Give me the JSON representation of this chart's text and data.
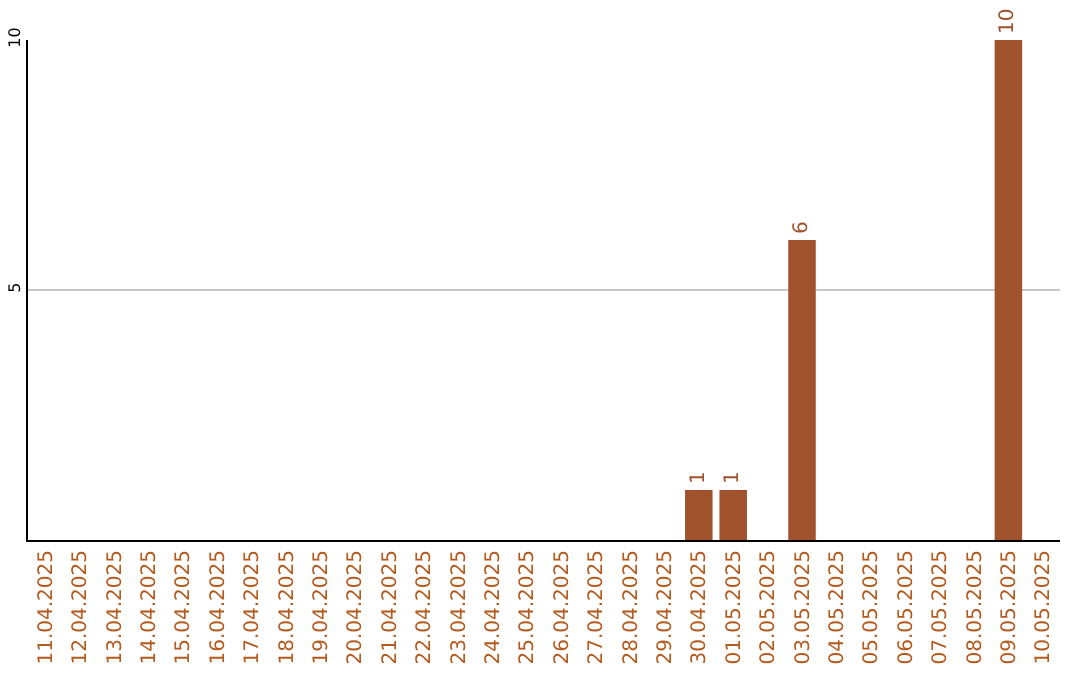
{
  "chart_data": {
    "type": "bar",
    "categories": [
      "11.04.2025",
      "12.04.2025",
      "13.04.2025",
      "14.04.2025",
      "15.04.2025",
      "16.04.2025",
      "17.04.2025",
      "18.04.2025",
      "19.04.2025",
      "20.04.2025",
      "21.04.2025",
      "22.04.2025",
      "23.04.2025",
      "24.04.2025",
      "25.04.2025",
      "26.04.2025",
      "27.04.2025",
      "28.04.2025",
      "29.04.2025",
      "30.04.2025",
      "01.05.2025",
      "02.05.2025",
      "03.05.2025",
      "04.05.2025",
      "05.05.2025",
      "06.05.2025",
      "07.05.2025",
      "08.05.2025",
      "09.05.2025",
      "10.05.2025"
    ],
    "values": [
      0,
      0,
      0,
      0,
      0,
      0,
      0,
      0,
      0,
      0,
      0,
      0,
      0,
      0,
      0,
      0,
      0,
      0,
      0,
      1,
      1,
      0,
      6,
      0,
      0,
      0,
      0,
      0,
      10,
      0
    ],
    "value_labels": [
      null,
      null,
      null,
      null,
      null,
      null,
      null,
      null,
      null,
      null,
      null,
      null,
      null,
      null,
      null,
      null,
      null,
      null,
      null,
      "1",
      "1",
      null,
      "6",
      null,
      null,
      null,
      null,
      null,
      "10",
      null
    ],
    "color": "#a0522d",
    "ylim": [
      0,
      10
    ],
    "yticks": [
      5,
      10
    ],
    "grid": "y",
    "legend": false
  }
}
